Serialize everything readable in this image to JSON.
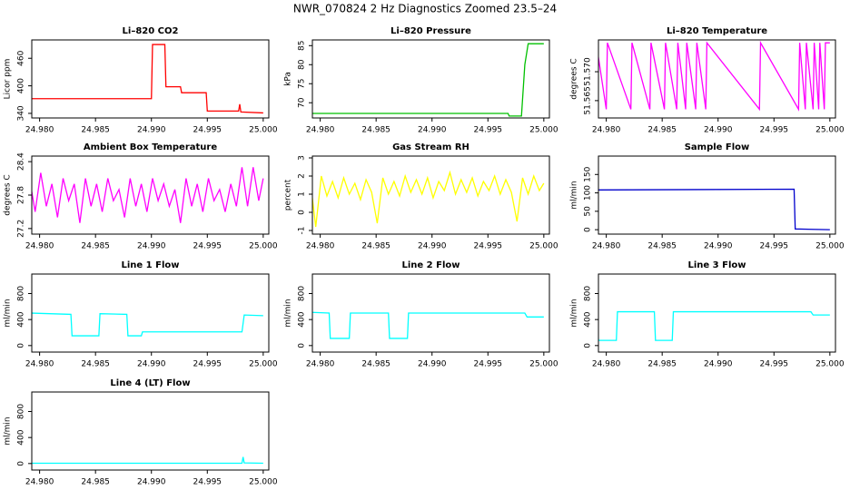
{
  "title": "NWR_070824  2 Hz Diagnostics Zoomed 23.5–24",
  "chart_data": [
    {
      "type": "line",
      "title": "Li–820 CO2",
      "ylabel": "Licor ppm",
      "color": "#ff0000",
      "x": [
        24.9791,
        24.99,
        24.9901,
        24.9912,
        24.9913,
        24.9926,
        24.9927,
        24.9949,
        24.995,
        24.9978,
        24.9979,
        24.998,
        25.0
      ],
      "values": [
        372,
        372,
        490,
        490,
        398,
        398,
        385,
        385,
        345,
        345,
        360,
        343,
        341
      ],
      "xlim": [
        24.9793,
        25.0005
      ],
      "xticks": [
        {
          "value": 24.98,
          "label": "24.980"
        },
        {
          "value": 24.985,
          "label": "24.985"
        },
        {
          "value": 24.99,
          "label": "24.990"
        },
        {
          "value": 24.995,
          "label": "24.995"
        },
        {
          "value": 25.0,
          "label": "25.000"
        }
      ],
      "ylim": [
        330,
        500
      ],
      "yticks": [
        340,
        400,
        460
      ]
    },
    {
      "type": "line",
      "title": "Li–820 Pressure",
      "ylabel": "kPa",
      "color": "#00c000",
      "x": [
        24.9791,
        24.9968,
        24.9969,
        24.998,
        24.9983,
        24.9986,
        25.0
      ],
      "values": [
        67.2,
        67.2,
        66.5,
        66.5,
        80,
        85.5,
        85.5
      ],
      "xlim": [
        24.9793,
        25.0005
      ],
      "xticks": [
        {
          "value": 24.98,
          "label": "24.980"
        },
        {
          "value": 24.985,
          "label": "24.985"
        },
        {
          "value": 24.99,
          "label": "24.990"
        },
        {
          "value": 24.995,
          "label": "24.995"
        },
        {
          "value": 25.0,
          "label": "25.000"
        }
      ],
      "ylim": [
        66,
        86.5
      ],
      "yticks": [
        70,
        75,
        80,
        85
      ]
    },
    {
      "type": "line",
      "title": "Li–820 Temperature",
      "ylabel": "degrees C",
      "color": "#ff00ff",
      "x": [
        24.9791,
        24.98,
        24.9801,
        24.9822,
        24.9823,
        24.9839,
        24.984,
        24.9852,
        24.9853,
        24.9863,
        24.9864,
        24.9871,
        24.9872,
        24.988,
        24.9881,
        24.9889,
        24.989,
        24.9937,
        24.9938,
        24.9972,
        24.9973,
        24.9978,
        24.9979,
        24.9985,
        24.9986,
        24.999,
        24.9991,
        24.9995,
        24.9996,
        25.0
      ],
      "values": [
        51.575,
        51.5635,
        51.575,
        51.5635,
        51.575,
        51.5635,
        51.575,
        51.5635,
        51.575,
        51.5635,
        51.575,
        51.5635,
        51.575,
        51.5635,
        51.575,
        51.5635,
        51.575,
        51.5635,
        51.575,
        51.5635,
        51.575,
        51.5635,
        51.575,
        51.5635,
        51.575,
        51.5635,
        51.575,
        51.5635,
        51.575,
        51.575
      ],
      "xlim": [
        24.9793,
        25.0005
      ],
      "xticks": [
        {
          "value": 24.98,
          "label": "24.980"
        },
        {
          "value": 24.985,
          "label": "24.985"
        },
        {
          "value": 24.99,
          "label": "24.990"
        },
        {
          "value": 24.995,
          "label": "24.995"
        },
        {
          "value": 25.0,
          "label": "25.000"
        }
      ],
      "ylim": [
        51.562,
        51.5755
      ],
      "yticks": [
        {
          "value": 51.565,
          "label": "51.565"
        },
        {
          "value": 51.57,
          "label": "51.570"
        }
      ]
    },
    {
      "type": "line",
      "title": "Ambient Box Temperature",
      "ylabel": "degrees C",
      "color": "#ff00ff",
      "x": [
        24.9791,
        24.9796,
        24.9801,
        24.9806,
        24.9811,
        24.9816,
        24.9821,
        24.9826,
        24.9831,
        24.9836,
        24.9841,
        24.9846,
        24.9851,
        24.9856,
        24.9861,
        24.9866,
        24.9871,
        24.9876,
        24.9881,
        24.9886,
        24.9891,
        24.9896,
        24.9901,
        24.9906,
        24.9911,
        24.9916,
        24.9921,
        24.9926,
        24.9931,
        24.9936,
        24.9941,
        24.9946,
        24.9951,
        24.9956,
        24.9961,
        24.9966,
        24.9971,
        24.9976,
        24.9981,
        24.9986,
        24.9991,
        24.9996,
        25.0
      ],
      "values": [
        28.1,
        27.5,
        28.2,
        27.6,
        28.0,
        27.4,
        28.1,
        27.7,
        28.0,
        27.3,
        28.1,
        27.6,
        28.0,
        27.5,
        28.1,
        27.7,
        27.9,
        27.4,
        28.1,
        27.6,
        28.0,
        27.5,
        28.1,
        27.7,
        28.0,
        27.6,
        27.9,
        27.3,
        28.1,
        27.6,
        28.0,
        27.5,
        28.1,
        27.7,
        27.9,
        27.5,
        28.0,
        27.6,
        28.3,
        27.6,
        28.3,
        27.7,
        28.1
      ],
      "xlim": [
        24.9793,
        25.0005
      ],
      "xticks": [
        {
          "value": 24.98,
          "label": "24.980"
        },
        {
          "value": 24.985,
          "label": "24.985"
        },
        {
          "value": 24.99,
          "label": "24.990"
        },
        {
          "value": 24.995,
          "label": "24.995"
        },
        {
          "value": 25.0,
          "label": "25.000"
        }
      ],
      "ylim": [
        27.1,
        28.5
      ],
      "yticks": [
        27.2,
        27.8,
        28.4
      ]
    },
    {
      "type": "line",
      "title": "Gas Stream RH",
      "ylabel": "percent",
      "color": "#ffff00",
      "x": [
        24.9791,
        24.9796,
        24.9801,
        24.9806,
        24.9811,
        24.9816,
        24.9821,
        24.9826,
        24.9831,
        24.9836,
        24.9841,
        24.9846,
        24.9851,
        24.9856,
        24.9861,
        24.9866,
        24.9871,
        24.9876,
        24.9881,
        24.9886,
        24.9891,
        24.9896,
        24.9901,
        24.9906,
        24.9911,
        24.9916,
        24.9921,
        24.9926,
        24.9931,
        24.9936,
        24.9941,
        24.9946,
        24.9951,
        24.9956,
        24.9961,
        24.9966,
        24.9971,
        24.9976,
        24.9981,
        24.9986,
        24.9991,
        24.9996,
        25.0
      ],
      "values": [
        1.8,
        -0.8,
        2.0,
        0.9,
        1.7,
        0.8,
        1.9,
        1.0,
        1.6,
        0.7,
        1.8,
        1.1,
        -0.6,
        1.9,
        1.0,
        1.7,
        0.9,
        2.0,
        1.1,
        1.8,
        1.0,
        1.9,
        0.8,
        1.7,
        1.2,
        2.2,
        1.0,
        1.8,
        1.1,
        1.9,
        0.9,
        1.7,
        1.2,
        2.0,
        1.0,
        1.8,
        1.1,
        -0.5,
        1.9,
        1.0,
        2.0,
        1.2,
        1.6
      ],
      "xlim": [
        24.9793,
        25.0005
      ],
      "xticks": [
        {
          "value": 24.98,
          "label": "24.980"
        },
        {
          "value": 24.985,
          "label": "24.985"
        },
        {
          "value": 24.99,
          "label": "24.990"
        },
        {
          "value": 24.995,
          "label": "24.995"
        },
        {
          "value": 25.0,
          "label": "25.000"
        }
      ],
      "ylim": [
        -1.2,
        3.1
      ],
      "yticks": [
        -1,
        0,
        1,
        2,
        3
      ]
    },
    {
      "type": "line",
      "title": "Sample Flow",
      "ylabel": "ml/min",
      "color": "#0000cc",
      "x": [
        24.9791,
        24.9968,
        24.9969,
        25.0
      ],
      "values": [
        108,
        110,
        2,
        0
      ],
      "xlim": [
        24.9793,
        25.0005
      ],
      "xticks": [
        {
          "value": 24.98,
          "label": "24.980"
        },
        {
          "value": 24.985,
          "label": "24.985"
        },
        {
          "value": 24.99,
          "label": "24.990"
        },
        {
          "value": 24.995,
          "label": "24.995"
        },
        {
          "value": 25.0,
          "label": "25.000"
        }
      ],
      "ylim": [
        -12,
        200
      ],
      "yticks": [
        0,
        50,
        100,
        150
      ]
    },
    {
      "type": "line",
      "title": "Line 1 Flow",
      "ylabel": "ml/min",
      "color": "#00ffff",
      "x": [
        24.9791,
        24.9792,
        24.9828,
        24.9829,
        24.9853,
        24.9854,
        24.9878,
        24.9879,
        24.9891,
        24.9892,
        24.9981,
        24.9983,
        25.0
      ],
      "values": [
        150,
        500,
        480,
        150,
        150,
        490,
        480,
        150,
        150,
        210,
        210,
        470,
        460
      ],
      "xlim": [
        24.9793,
        25.0005
      ],
      "xticks": [
        {
          "value": 24.98,
          "label": "24.980"
        },
        {
          "value": 24.985,
          "label": "24.985"
        },
        {
          "value": 24.99,
          "label": "24.990"
        },
        {
          "value": 24.995,
          "label": "24.995"
        },
        {
          "value": 25.0,
          "label": "25.000"
        }
      ],
      "ylim": [
        -100,
        1100
      ],
      "yticks": [
        0,
        400,
        800
      ]
    },
    {
      "type": "line",
      "title": "Line 2 Flow",
      "ylabel": "ml/min",
      "color": "#00ffff",
      "x": [
        24.9792,
        24.9793,
        24.9808,
        24.9809,
        24.9826,
        24.9827,
        24.9861,
        24.9862,
        24.9878,
        24.9879,
        24.9983,
        24.9985,
        25.0
      ],
      "values": [
        510,
        510,
        500,
        110,
        110,
        500,
        500,
        110,
        110,
        500,
        500,
        440,
        440
      ],
      "xlim": [
        24.9793,
        25.0005
      ],
      "xticks": [
        {
          "value": 24.98,
          "label": "24.980"
        },
        {
          "value": 24.985,
          "label": "24.985"
        },
        {
          "value": 24.99,
          "label": "24.990"
        },
        {
          "value": 24.995,
          "label": "24.995"
        },
        {
          "value": 25.0,
          "label": "25.000"
        }
      ],
      "ylim": [
        -100,
        1100
      ],
      "yticks": [
        0,
        400,
        800
      ]
    },
    {
      "type": "line",
      "title": "Line 3 Flow",
      "ylabel": "ml/min",
      "color": "#00ffff",
      "x": [
        24.9792,
        24.9793,
        24.9809,
        24.981,
        24.9843,
        24.9844,
        24.9859,
        24.986,
        24.9983,
        24.9985,
        25.0
      ],
      "values": [
        520,
        80,
        80,
        520,
        520,
        80,
        80,
        520,
        520,
        470,
        470
      ],
      "xlim": [
        24.9793,
        25.0005
      ],
      "xticks": [
        {
          "value": 24.98,
          "label": "24.980"
        },
        {
          "value": 24.985,
          "label": "24.985"
        },
        {
          "value": 24.99,
          "label": "24.990"
        },
        {
          "value": 24.995,
          "label": "24.995"
        },
        {
          "value": 25.0,
          "label": "25.000"
        }
      ],
      "ylim": [
        -100,
        1100
      ],
      "yticks": [
        0,
        400,
        800
      ]
    },
    {
      "type": "line",
      "title": "Line 4 (LT) Flow",
      "ylabel": "ml/min",
      "color": "#00ffff",
      "x": [
        24.9791,
        24.9981,
        24.9982,
        24.9983,
        25.0
      ],
      "values": [
        5,
        5,
        100,
        10,
        5
      ],
      "xlim": [
        24.9793,
        25.0005
      ],
      "xticks": [
        {
          "value": 24.98,
          "label": "24.980"
        },
        {
          "value": 24.985,
          "label": "24.985"
        },
        {
          "value": 24.99,
          "label": "24.990"
        },
        {
          "value": 24.995,
          "label": "24.995"
        },
        {
          "value": 25.0,
          "label": "25.000"
        }
      ],
      "ylim": [
        -100,
        1100
      ],
      "yticks": [
        0,
        400,
        800
      ]
    }
  ]
}
